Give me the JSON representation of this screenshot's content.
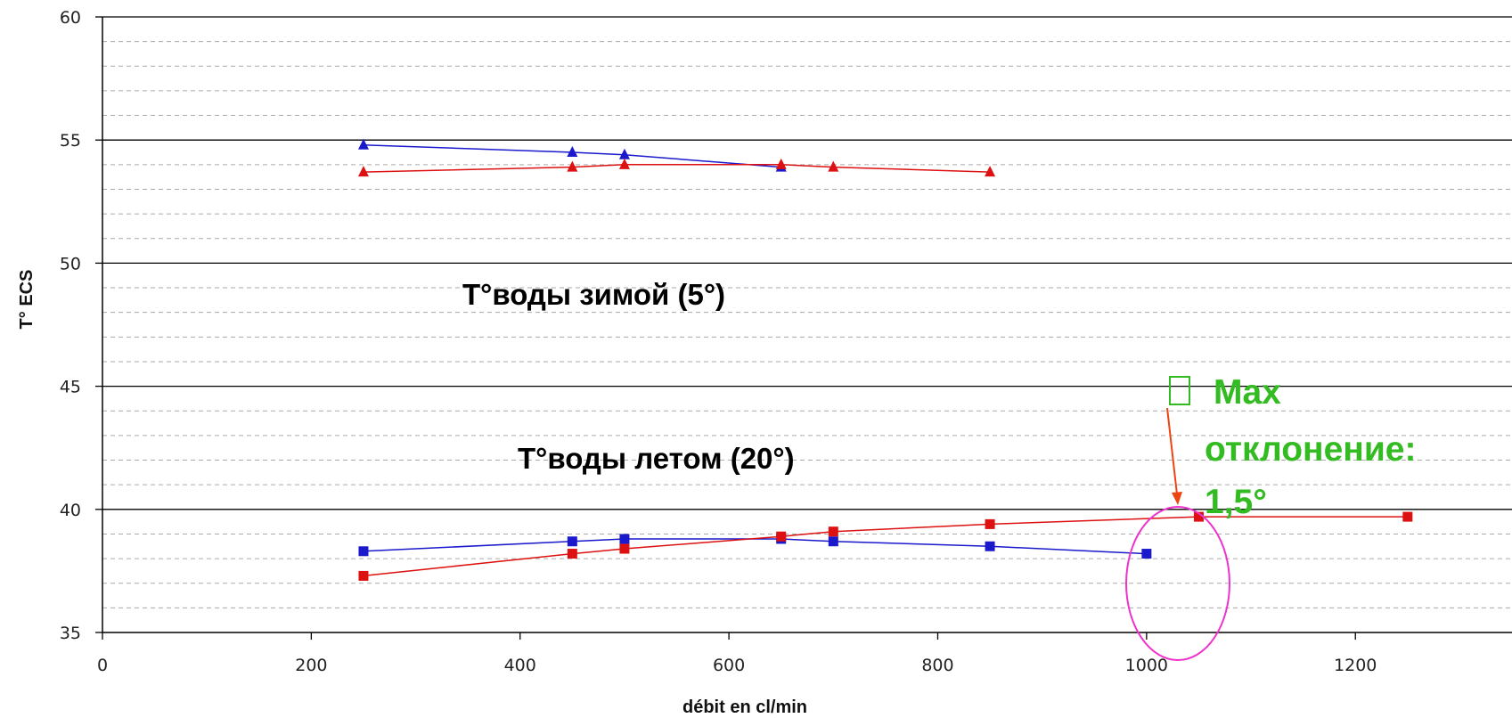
{
  "chart_data": {
    "type": "line",
    "xlabel": "débit en cl/min",
    "ylabel": "T° ECS",
    "xlim": [
      0,
      1350
    ],
    "ylim": [
      35,
      60
    ],
    "xticks": [
      0,
      200,
      400,
      600,
      800,
      1000,
      1200
    ],
    "yticks": [
      35,
      40,
      45,
      50,
      55,
      60
    ],
    "grid": "major solid, minor dashed",
    "colors": {
      "blue": "#1a1acc",
      "red": "#dd1111",
      "annotation": "#33bb22",
      "circle": "#ee33cc",
      "arrow": "#ee4411"
    },
    "series": [
      {
        "color": "blue",
        "marker": "triangle",
        "x": [
          250,
          450,
          500,
          650
        ],
        "y": [
          54.8,
          54.5,
          54.4,
          53.9
        ]
      },
      {
        "color": "red",
        "marker": "triangle",
        "x": [
          250,
          450,
          500,
          650,
          700,
          850
        ],
        "y": [
          53.7,
          53.9,
          54.0,
          54.0,
          53.9,
          53.7
        ]
      },
      {
        "color": "blue",
        "marker": "square",
        "x": [
          250,
          450,
          500,
          650,
          700,
          850,
          1000
        ],
        "y": [
          38.3,
          38.7,
          38.8,
          38.8,
          38.7,
          38.5,
          38.2
        ]
      },
      {
        "color": "red",
        "marker": "square",
        "x": [
          250,
          450,
          500,
          650,
          700,
          850,
          1050,
          1250
        ],
        "y": [
          37.3,
          38.2,
          38.4,
          38.9,
          39.1,
          39.4,
          39.7,
          39.7
        ]
      }
    ],
    "annotations": {
      "winter": "T°воды зимой (5°)",
      "summer": "T°воды летом (20°)",
      "max_deviation": [
        "Max",
        "отклонение:",
        "1,5°"
      ],
      "bullet": "□"
    }
  }
}
